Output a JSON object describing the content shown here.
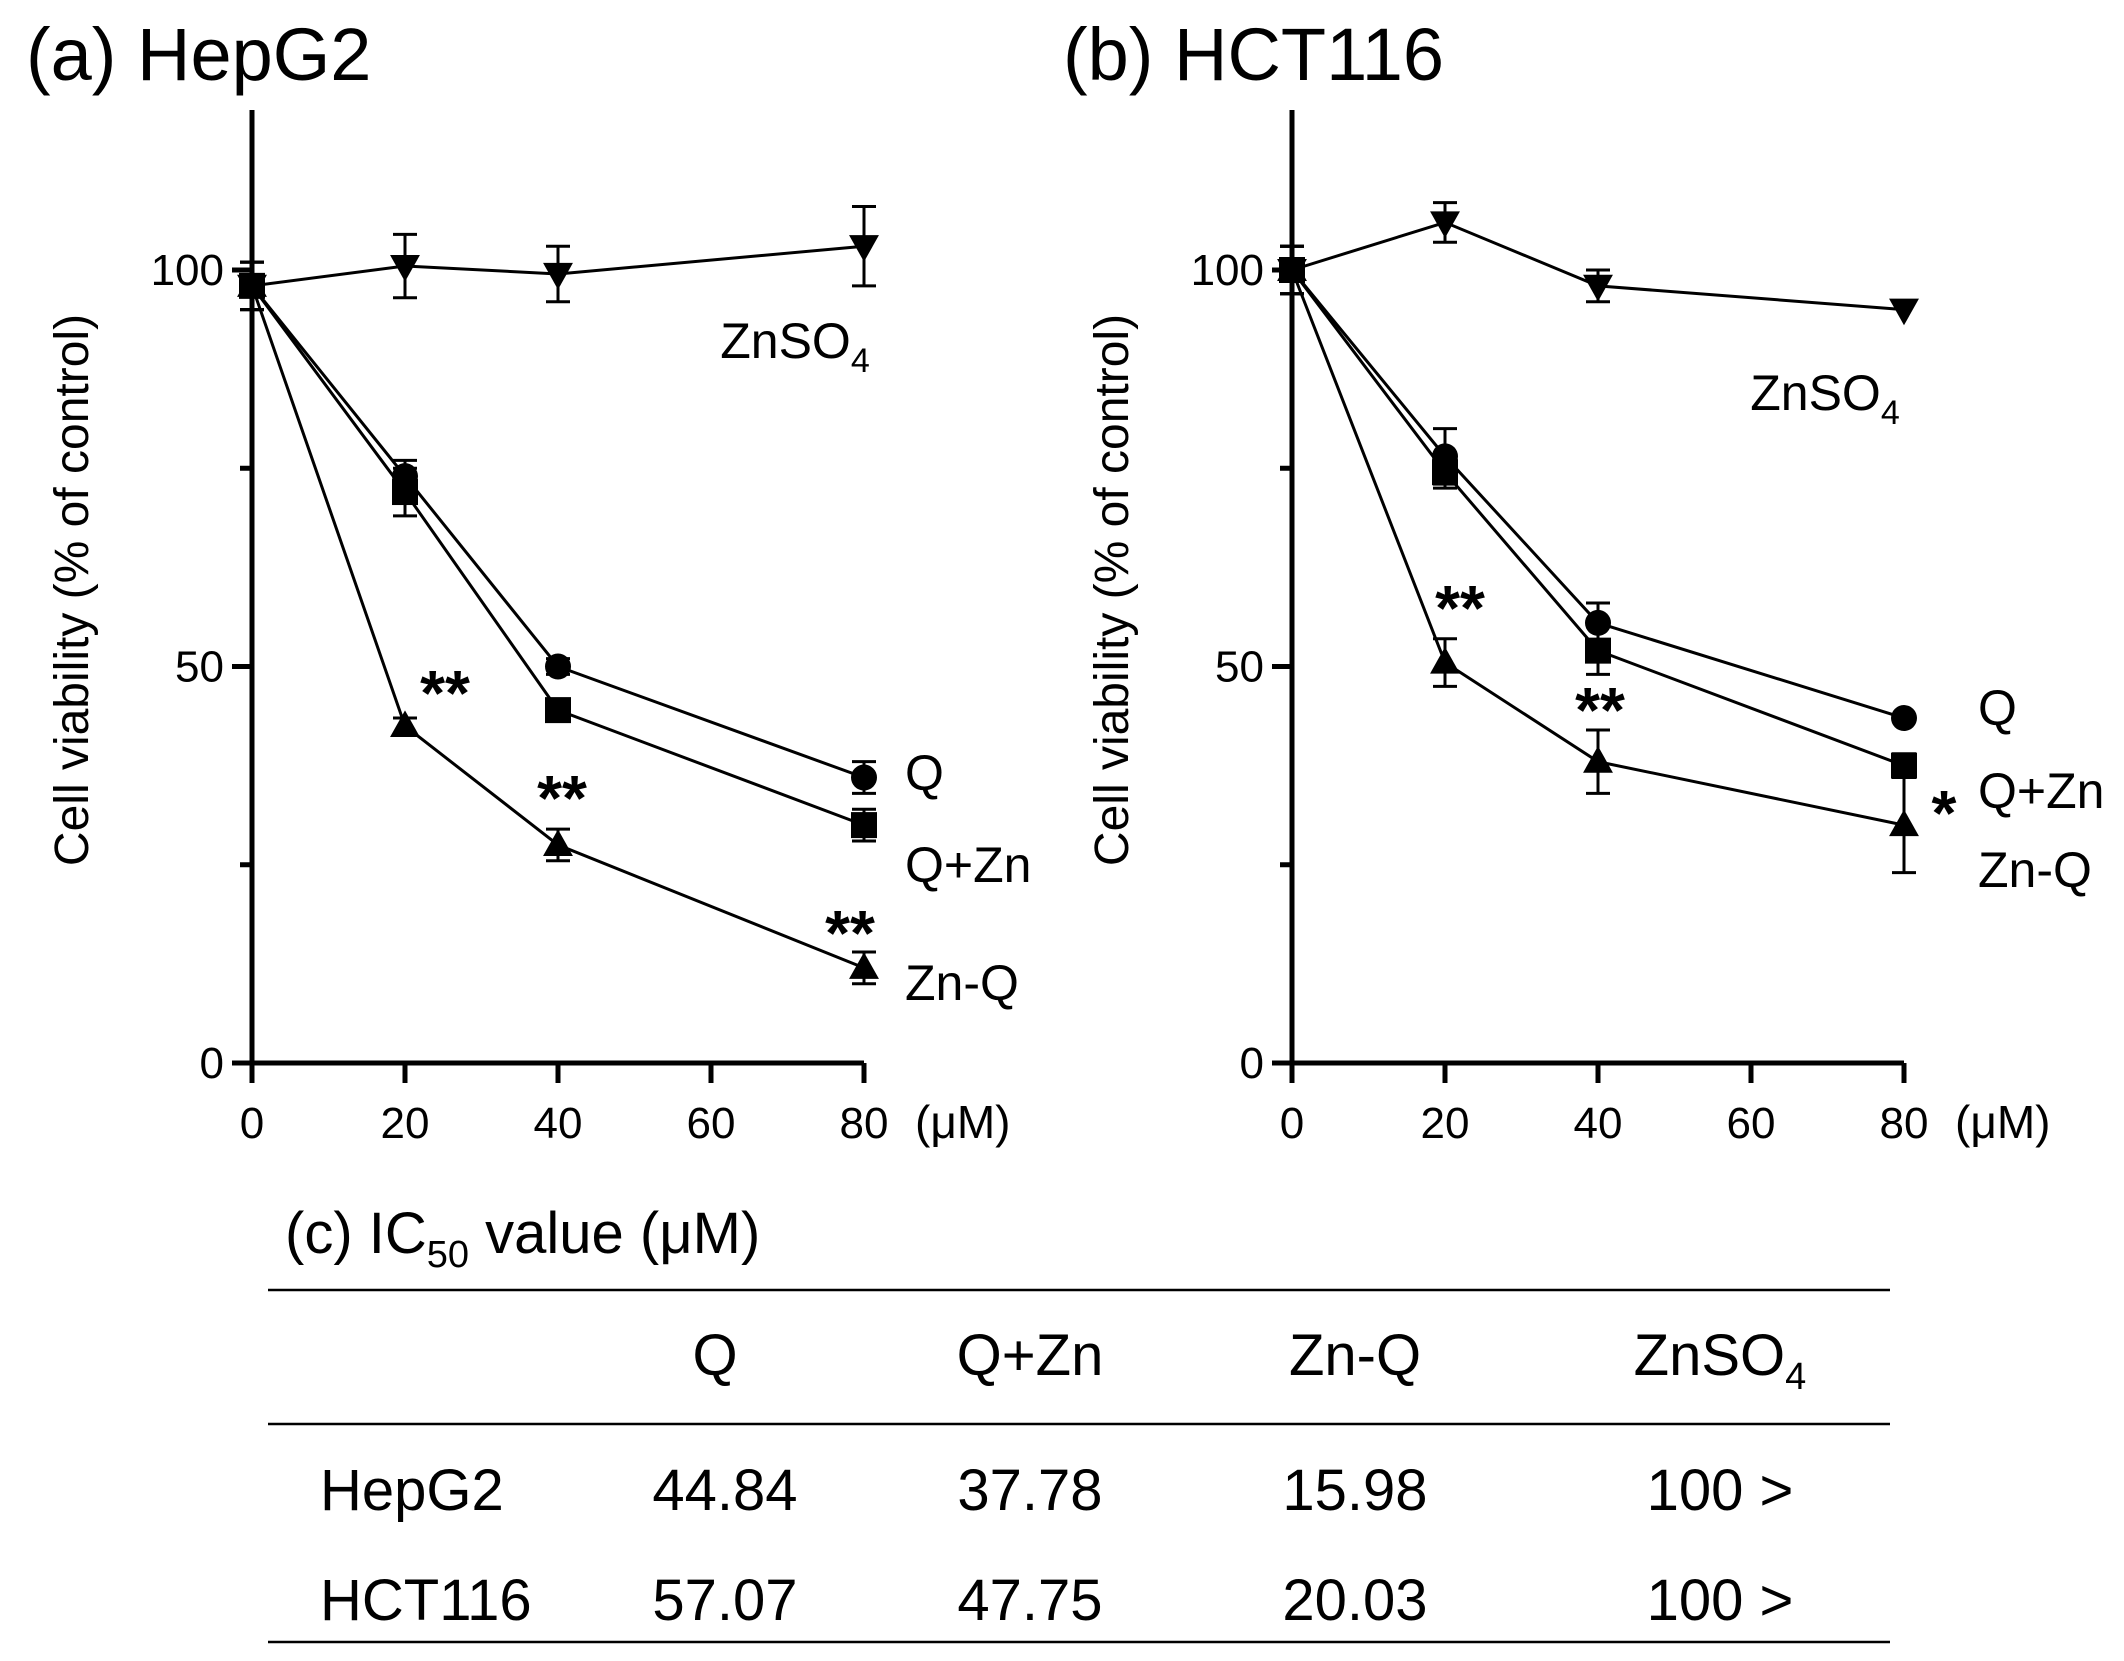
{
  "chart_data": [
    {
      "type": "line",
      "title": "(a) HepG2",
      "ylabel": "Cell viability (% of control)",
      "xlabel": "",
      "x_unit": "(μM)",
      "x": [
        0,
        20,
        40,
        80
      ],
      "xticks": [
        "0",
        "20",
        "40",
        "60",
        "80"
      ],
      "yticks": [
        "0",
        "50",
        "100"
      ],
      "xlim": [
        0,
        80
      ],
      "ylim": [
        0,
        100
      ],
      "series": [
        {
          "name": "ZnSO4",
          "name_main": "ZnSO",
          "name_sub": "4",
          "marker": "triangle-down",
          "values": [
            98,
            100.5,
            99.5,
            103
          ],
          "errors": [
            3,
            4,
            3.5,
            5
          ]
        },
        {
          "name": "Q",
          "marker": "circle",
          "values": [
            98,
            74,
            50,
            36
          ],
          "errors": [
            3,
            2,
            1,
            2
          ]
        },
        {
          "name": "Q+Zn",
          "marker": "square",
          "values": [
            98,
            72,
            44.5,
            30
          ],
          "errors": [
            3,
            3,
            1,
            2
          ]
        },
        {
          "name": "Zn-Q",
          "marker": "triangle-up",
          "values": [
            98,
            42.5,
            27.5,
            12
          ],
          "errors": [
            3,
            1,
            2,
            2
          ]
        }
      ],
      "annotations": [
        {
          "text": "**",
          "x": 20,
          "series": "Zn-Q"
        },
        {
          "text": "**",
          "x": 40,
          "series": "Zn-Q"
        },
        {
          "text": "**",
          "x": 80,
          "series": "Zn-Q"
        }
      ]
    },
    {
      "type": "line",
      "title": "(b) HCT116",
      "ylabel": "Cell viability (% of control)",
      "xlabel": "",
      "x_unit": "(μM)",
      "x": [
        0,
        20,
        40,
        80
      ],
      "xticks": [
        "0",
        "20",
        "40",
        "60",
        "80"
      ],
      "yticks": [
        "0",
        "50",
        "100"
      ],
      "xlim": [
        0,
        80
      ],
      "ylim": [
        0,
        100
      ],
      "series": [
        {
          "name": "ZnSO4",
          "name_main": "ZnSO",
          "name_sub": "4",
          "marker": "triangle-down",
          "values": [
            100,
            106,
            98,
            95
          ],
          "errors": [
            3,
            2.5,
            2,
            0
          ]
        },
        {
          "name": "Q",
          "marker": "circle",
          "values": [
            100,
            76.5,
            55.5,
            43.5
          ],
          "errors": [
            3,
            3.5,
            2.5,
            0
          ]
        },
        {
          "name": "Q+Zn",
          "marker": "square",
          "values": [
            100,
            74.5,
            52,
            37.5
          ],
          "errors": [
            3,
            2,
            3,
            1.5
          ]
        },
        {
          "name": "Zn-Q",
          "marker": "triangle-up",
          "values": [
            100,
            50.5,
            38,
            30
          ],
          "errors": [
            3,
            3,
            4,
            6
          ]
        }
      ],
      "annotations": [
        {
          "text": "**",
          "x": 20,
          "series": "Zn-Q"
        },
        {
          "text": "**",
          "x": 40,
          "series": "Zn-Q"
        },
        {
          "text": "*",
          "x": 80,
          "series": "Zn-Q"
        }
      ]
    },
    {
      "type": "table",
      "title_prefix": "(c) IC",
      "title_sub": "50",
      "title_suffix": " value (μM)",
      "columns": [
        "",
        "Q",
        "Q+Zn",
        "Zn-Q",
        "ZnSO4"
      ],
      "column_last_main": "ZnSO",
      "column_last_sub": "4",
      "rows": [
        [
          "HepG2",
          "44.84",
          "37.78",
          "15.98",
          "100 >"
        ],
        [
          "HCT116",
          "57.07",
          "47.75",
          "20.03",
          "100 >"
        ]
      ]
    }
  ]
}
